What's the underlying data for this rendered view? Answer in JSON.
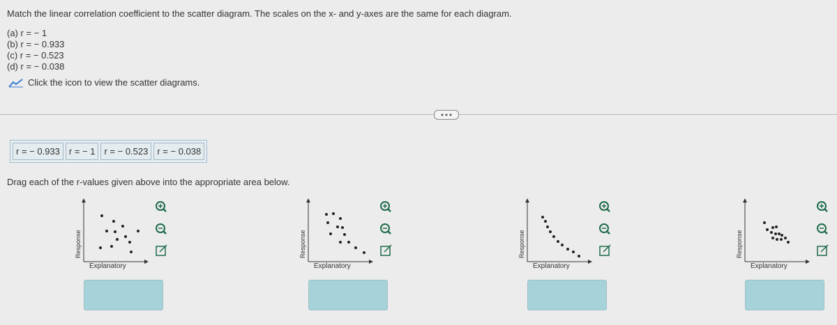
{
  "header": {
    "instruction": "Match the linear correlation coefficient to the scatter diagram. The scales on the x- and y-axes are the same for each diagram.",
    "items": [
      "(a) r = − 1",
      "(b) r = − 0.933",
      "(c) r = − 0.523",
      "(d) r = − 0.038"
    ],
    "link": "Click the icon to view the scatter diagrams."
  },
  "answer_bank": {
    "chips": [
      "r = − 0.933",
      "r = − 1",
      "r = − 0.523",
      "r = − 0.038"
    ]
  },
  "prompt": "Drag each of the r-values given above into the appropriate area below.",
  "diagrams": [
    {
      "y_label": "Response",
      "x_label": "Explanatory"
    },
    {
      "y_label": "Response",
      "x_label": "Explanatory"
    },
    {
      "y_label": "Response",
      "x_label": "Explanatory"
    },
    {
      "y_label": "Response",
      "x_label": "Explanatory"
    }
  ]
}
